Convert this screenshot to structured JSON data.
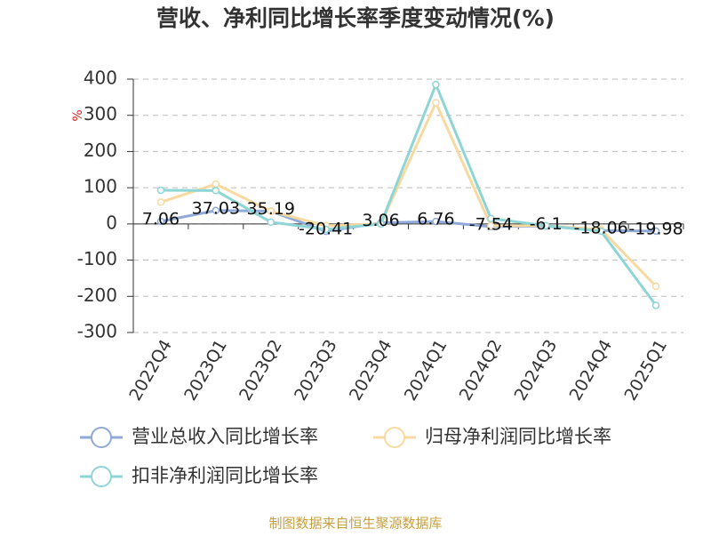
{
  "chart_data": {
    "type": "line",
    "title": "营收、净利同比增长率季度变动情况(%)",
    "y_label": "%",
    "categories": [
      "2022Q4",
      "2023Q1",
      "2023Q2",
      "2023Q3",
      "2023Q4",
      "2024Q1",
      "2024Q2",
      "2024Q3",
      "2024Q4",
      "2025Q1"
    ],
    "series": [
      {
        "name": "营业总收入同比增长率",
        "color": "#8fa9d9",
        "values": [
          7.06,
          37.03,
          35.19,
          -20.41,
          3.06,
          6.76,
          -7.54,
          -6.1,
          -18.06,
          -19.98
        ]
      },
      {
        "name": "归母净利润同比增长率",
        "color": "#f8d9a0",
        "values": [
          60,
          110,
          35,
          -5,
          0,
          335,
          -5,
          -5,
          -15,
          -172
        ]
      },
      {
        "name": "扣非净利润同比增长率",
        "color": "#8ed5d5",
        "values": [
          93,
          92,
          5,
          -15,
          0,
          385,
          15,
          -5,
          -20,
          -225
        ]
      }
    ],
    "ylim": [
      -300,
      400
    ],
    "yticks": [
      -300,
      -200,
      -100,
      0,
      100,
      200,
      300,
      400
    ],
    "grid": true,
    "source": "制图数据来自恒生聚源数据库"
  }
}
